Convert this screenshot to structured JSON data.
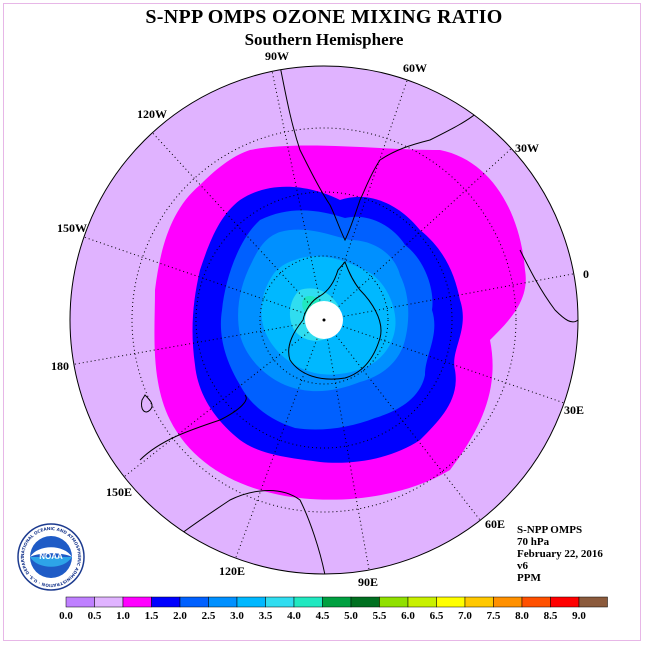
{
  "header": {
    "title": "S-NPP OMPS OZONE MIXING RATIO",
    "subtitle": "Southern Hemisphere"
  },
  "map": {
    "projection": "south-polar-stereographic",
    "longitude_labels": [
      "90W",
      "60W",
      "30W",
      "0",
      "30E",
      "60E",
      "90E",
      "120E",
      "150E",
      "180",
      "150W",
      "120W"
    ],
    "graticule": "dotted"
  },
  "info": {
    "instrument": "S-NPP OMPS",
    "level": "70 hPa",
    "date": "February 22, 2016",
    "version": "v6",
    "units": "PPM"
  },
  "logo": {
    "text": "NOAA",
    "ring_text": "NATIONAL OCEANIC AND ATMOSPHERIC ADMINISTRATION · U.S. DEPARTMENT OF COMMERCE"
  },
  "colorbar": {
    "ticks": [
      "0.0",
      "0.5",
      "1.0",
      "1.5",
      "2.0",
      "2.5",
      "3.0",
      "3.5",
      "4.0",
      "4.5",
      "5.0",
      "5.5",
      "6.0",
      "6.5",
      "7.0",
      "7.5",
      "8.0",
      "8.5",
      "9.0"
    ],
    "colors": [
      "#bf80ff",
      "#e0b3ff",
      "#ff00ff",
      "#0000ff",
      "#0060ff",
      "#0090ff",
      "#00b8ff",
      "#30ddf0",
      "#20e8c0",
      "#00a040",
      "#007020",
      "#90e000",
      "#c8f000",
      "#ffff00",
      "#ffc800",
      "#ff9000",
      "#ff5000",
      "#ff0000",
      "#8b5a3c"
    ]
  },
  "chart_data": {
    "type": "heatmap",
    "title": "S-NPP OMPS OZONE MIXING RATIO",
    "subtitle": "Southern Hemisphere",
    "units": "PPM",
    "scale_min": 0.0,
    "scale_max": 9.0,
    "interval": 0.5,
    "observed_bands": [
      {
        "range": [
          0.5,
          1.0
        ],
        "region": "outer mid-latitudes"
      },
      {
        "range": [
          1.0,
          1.5
        ],
        "region": "ring around vortex"
      },
      {
        "range": [
          1.5,
          2.0
        ],
        "region": "vortex edge"
      },
      {
        "range": [
          2.0,
          2.5
        ],
        "region": "inner ring"
      },
      {
        "range": [
          2.5,
          3.0
        ],
        "region": "inner ring"
      },
      {
        "range": [
          3.0,
          3.5
        ],
        "region": "polar interior"
      },
      {
        "range": [
          3.5,
          4.0
        ],
        "region": "polar core"
      },
      {
        "range": [
          4.0,
          4.5
        ],
        "region": "small patch near pole"
      }
    ]
  }
}
